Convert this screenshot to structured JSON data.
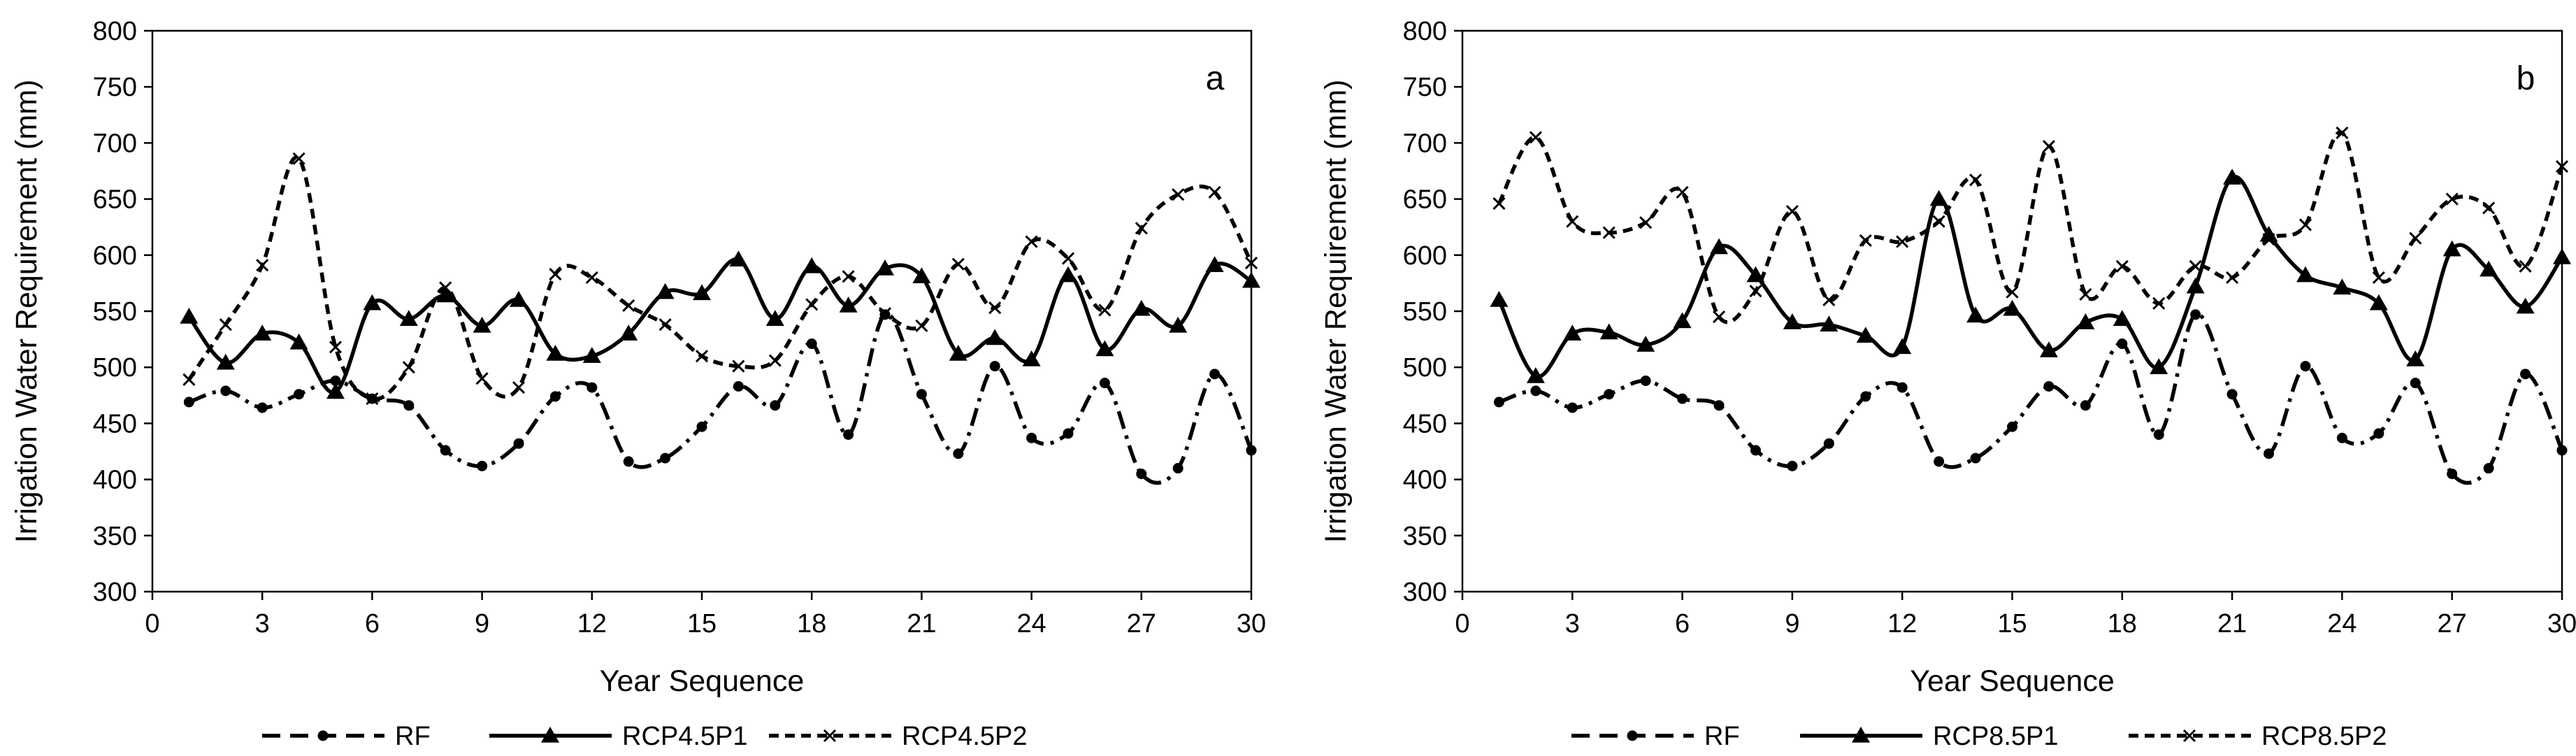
{
  "chart_data": [
    {
      "type": "line",
      "panel_label": "a",
      "title": "",
      "xlabel": "Year Sequence",
      "ylabel": "Irrigation Water Requirement (mm)",
      "xlim": [
        0,
        30
      ],
      "ylim": [
        300,
        800
      ],
      "xticks": [
        0,
        3,
        6,
        9,
        12,
        15,
        18,
        21,
        24,
        27,
        30
      ],
      "yticks": [
        300,
        350,
        400,
        450,
        500,
        550,
        600,
        650,
        700,
        750,
        800
      ],
      "grid": false,
      "legend_position": "bottom",
      "x": [
        1,
        2,
        3,
        4,
        5,
        6,
        7,
        8,
        9,
        10,
        11,
        12,
        13,
        14,
        15,
        16,
        17,
        18,
        19,
        20,
        21,
        22,
        23,
        24,
        25,
        26,
        27,
        28,
        29,
        30
      ],
      "series": [
        {
          "name": "RF",
          "line_style": "dash-dot",
          "marker": "circle",
          "values": [
            469,
            479,
            464,
            476,
            488,
            472,
            466,
            426,
            412,
            432,
            474,
            482,
            416,
            419,
            447,
            483,
            466,
            521,
            440,
            547,
            476,
            423,
            501,
            437,
            441,
            486,
            405,
            410,
            494,
            426
          ]
        },
        {
          "name": "RCP4.5P1",
          "line_style": "solid",
          "marker": "triangle",
          "values": [
            545,
            504,
            530,
            522,
            478,
            557,
            543,
            564,
            537,
            560,
            512,
            510,
            530,
            567,
            566,
            596,
            543,
            590,
            555,
            588,
            581,
            512,
            526,
            507,
            582,
            516,
            552,
            537,
            591,
            577
          ]
        },
        {
          "name": "RCP4.5P2",
          "line_style": "dashed",
          "marker": "x",
          "values": [
            489,
            538,
            591,
            686,
            518,
            472,
            500,
            571,
            490,
            482,
            583,
            580,
            555,
            538,
            510,
            501,
            506,
            556,
            581,
            548,
            537,
            592,
            553,
            612,
            597,
            551,
            624,
            654,
            656,
            593
          ]
        }
      ]
    },
    {
      "type": "line",
      "panel_label": "b",
      "title": "",
      "xlabel": "Year Sequence",
      "ylabel": "Irrigation Water Requirement (mm)",
      "xlim": [
        0,
        30
      ],
      "ylim": [
        300,
        800
      ],
      "xticks": [
        0,
        3,
        6,
        9,
        12,
        15,
        18,
        21,
        24,
        27,
        30
      ],
      "yticks": [
        300,
        350,
        400,
        450,
        500,
        550,
        600,
        650,
        700,
        750,
        800
      ],
      "grid": false,
      "legend_position": "bottom",
      "x": [
        1,
        2,
        3,
        4,
        5,
        6,
        7,
        8,
        9,
        10,
        11,
        12,
        13,
        14,
        15,
        16,
        17,
        18,
        19,
        20,
        21,
        22,
        23,
        24,
        25,
        26,
        27,
        28,
        29,
        30
      ],
      "series": [
        {
          "name": "RF",
          "line_style": "dash-dot",
          "marker": "circle",
          "values": [
            469,
            479,
            464,
            476,
            488,
            472,
            466,
            426,
            412,
            432,
            474,
            482,
            416,
            419,
            447,
            483,
            466,
            521,
            440,
            547,
            476,
            423,
            501,
            437,
            441,
            486,
            405,
            410,
            494,
            426
          ]
        },
        {
          "name": "RCP8.5P1",
          "line_style": "solid",
          "marker": "triangle",
          "values": [
            560,
            492,
            530,
            531,
            520,
            541,
            607,
            582,
            540,
            538,
            528,
            518,
            650,
            546,
            552,
            515,
            540,
            543,
            500,
            572,
            669,
            618,
            582,
            571,
            557,
            507,
            605,
            587,
            554,
            598
          ]
        },
        {
          "name": "RCP8.5P2",
          "line_style": "dashed",
          "marker": "x",
          "values": [
            646,
            705,
            630,
            620,
            629,
            656,
            545,
            568,
            639,
            560,
            613,
            612,
            630,
            667,
            567,
            697,
            565,
            590,
            557,
            590,
            580,
            614,
            627,
            709,
            580,
            615,
            650,
            642,
            590,
            679
          ]
        }
      ]
    }
  ]
}
